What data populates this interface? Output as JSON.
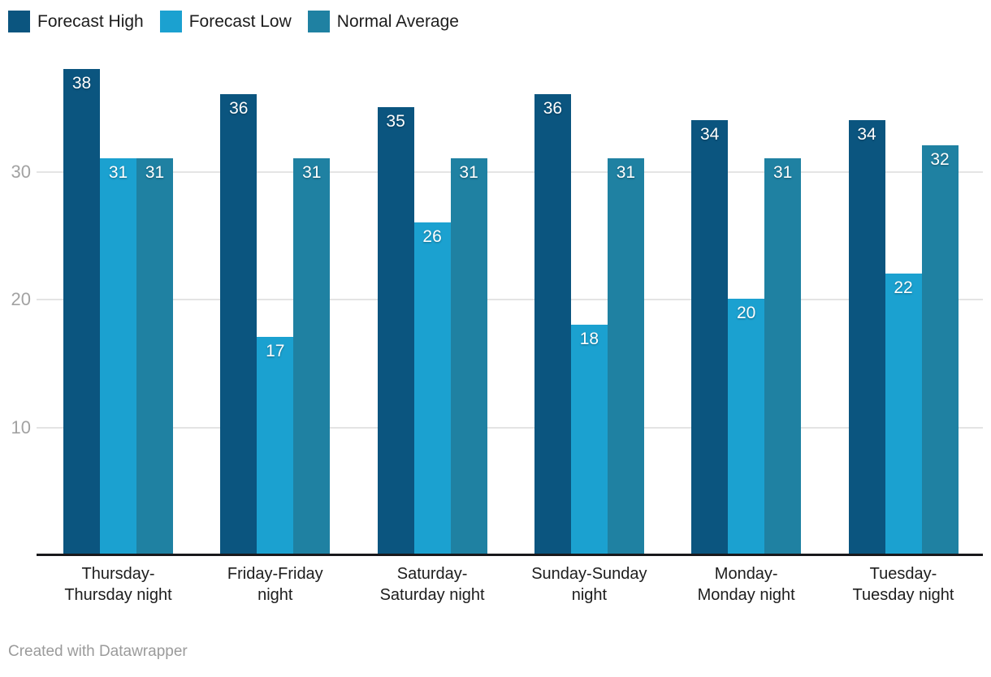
{
  "legend": {
    "items": [
      {
        "label": "Forecast High",
        "color": "#0b557f"
      },
      {
        "label": "Forecast Low",
        "color": "#1ba1d0"
      },
      {
        "label": "Normal Average",
        "color": "#1f81a2"
      }
    ]
  },
  "chart_data": {
    "type": "bar",
    "categories": [
      "Thursday-Thursday night",
      "Friday-Friday night",
      "Saturday-Saturday night",
      "Sunday-Sunday night",
      "Monday-Monday night",
      "Tuesday-Tuesday night"
    ],
    "category_label_lines": [
      [
        "Thursday-",
        "Thursday night"
      ],
      [
        "Friday-Friday",
        "night"
      ],
      [
        "Saturday-",
        "Saturday night"
      ],
      [
        "Sunday-Sunday",
        "night"
      ],
      [
        "Monday-",
        "Monday night"
      ],
      [
        "Tuesday-",
        "Tuesday night"
      ]
    ],
    "series": [
      {
        "name": "Forecast High",
        "color": "#0b557f",
        "values": [
          38,
          36,
          35,
          36,
          34,
          34
        ]
      },
      {
        "name": "Forecast Low",
        "color": "#1ba1d0",
        "values": [
          31,
          17,
          26,
          18,
          20,
          22
        ]
      },
      {
        "name": "Normal Average",
        "color": "#1f81a2",
        "values": [
          31,
          31,
          31,
          31,
          31,
          32
        ]
      }
    ],
    "yticks": [
      10,
      20,
      30
    ],
    "ylim": [
      0,
      40
    ],
    "grid": "horizontal-only",
    "legend_position": "top-left",
    "value_labels": "inside-bar-top-white"
  },
  "footer": {
    "credit": "Created with Datawrapper"
  },
  "colors": {
    "background": "#ffffff",
    "gridline": "#e4e4e4",
    "axis_line": "#19191c",
    "tick_label": "#a2a2a2",
    "text": "#1d1d1d",
    "credit": "#9b9b9b"
  }
}
